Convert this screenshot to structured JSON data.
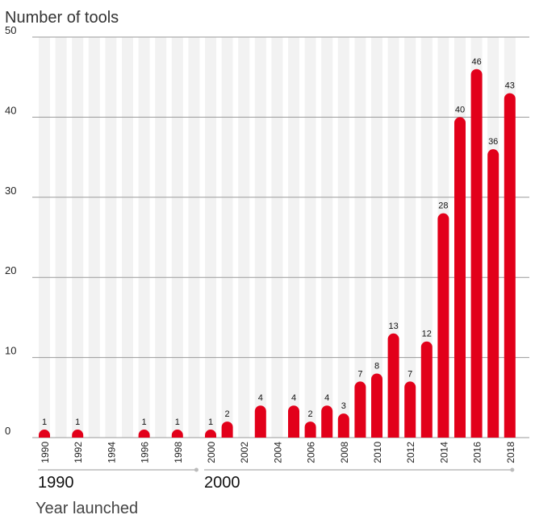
{
  "chart_data": {
    "type": "bar",
    "title": "Number of tools",
    "xlabel": "Year launched",
    "ylabel": "",
    "ylim": [
      0,
      50
    ],
    "yticks": [
      0,
      10,
      20,
      30,
      40,
      50
    ],
    "x": [
      1990,
      1991,
      1992,
      1993,
      1994,
      1995,
      1996,
      1997,
      1998,
      1999,
      2000,
      2001,
      2002,
      2003,
      2004,
      2005,
      2006,
      2007,
      2008,
      2009,
      2010,
      2011,
      2012,
      2013,
      2014,
      2015,
      2016,
      2017,
      2018
    ],
    "values": [
      1,
      0,
      1,
      0,
      0,
      0,
      1,
      0,
      1,
      0,
      1,
      2,
      0,
      4,
      0,
      4,
      2,
      4,
      3,
      7,
      8,
      13,
      7,
      12,
      28,
      40,
      46,
      36,
      43
    ],
    "tick_labels": [
      "1990",
      "1992",
      "1994",
      "1996",
      "1998",
      "2000",
      "2002",
      "2004",
      "2006",
      "2008",
      "2010",
      "2012",
      "2014",
      "2016",
      "2018"
    ],
    "decade_labels": [
      "1990",
      "2000"
    ],
    "grid": true,
    "colors": {
      "bar": "#e2001a",
      "stripe": "#f2f2f2",
      "grid": "#999999",
      "decade_line": "#bbbbbb"
    }
  }
}
